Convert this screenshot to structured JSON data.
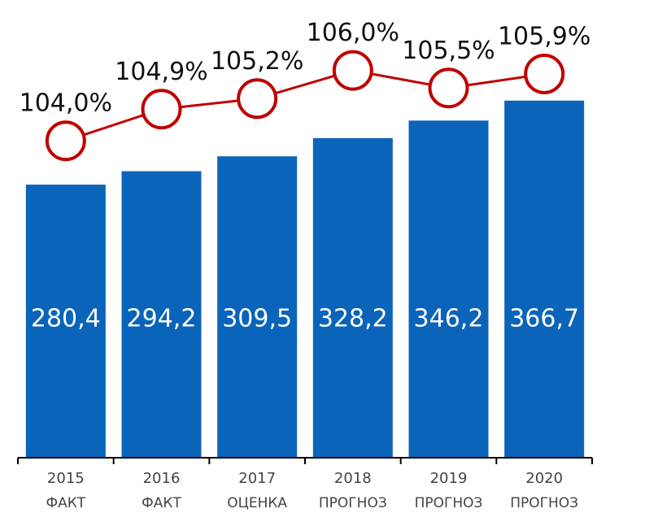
{
  "chart_data": {
    "type": "bar_line",
    "categories": [
      "2015",
      "2016",
      "2017",
      "2018",
      "2019",
      "2020"
    ],
    "category_status": [
      "ФАКТ",
      "ФАКТ",
      "ОЦЕНКА",
      "ПРОГНОЗ",
      "ПРОГНОЗ",
      "ПРОГНОЗ"
    ],
    "series": [
      {
        "type": "bar",
        "color": "#0a64b9",
        "values": [
          280.4,
          294.2,
          309.5,
          328.2,
          346.2,
          366.7
        ],
        "value_labels": [
          "280,4",
          "294,2",
          "309,5",
          "328,2",
          "346,2",
          "366,7"
        ]
      },
      {
        "type": "line",
        "axis": "y2",
        "color": "#c00000",
        "values": [
          104.0,
          104.9,
          105.2,
          106.0,
          105.5,
          105.9
        ],
        "value_labels": [
          "104,0%",
          "104,9%",
          "105,2%",
          "106,0%",
          "105,5%",
          "105,9%"
        ]
      }
    ],
    "ylim": [
      0,
      470
    ],
    "y2lim": [
      95,
      108
    ]
  }
}
